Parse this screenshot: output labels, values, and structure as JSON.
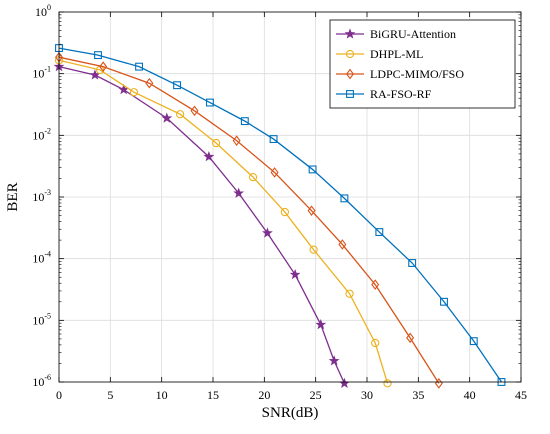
{
  "chart_data": {
    "type": "line",
    "xlabel": "SNR(dB)",
    "ylabel": "BER",
    "xlim": [
      0,
      45
    ],
    "ylim": [
      1e-06,
      1
    ],
    "yscale": "log",
    "grid": true,
    "legend_position": "top-right",
    "x_ticks": [
      "0",
      "5",
      "10",
      "15",
      "20",
      "25",
      "30",
      "35",
      "40",
      "45"
    ],
    "y_ticks": [
      {
        "value": 1e-06,
        "exp": "-6"
      },
      {
        "value": 1e-05,
        "exp": "-5"
      },
      {
        "value": 0.0001,
        "exp": "-4"
      },
      {
        "value": 0.001,
        "exp": "-3"
      },
      {
        "value": 0.01,
        "exp": "-2"
      },
      {
        "value": 0.1,
        "exp": "-1"
      },
      {
        "value": 1,
        "exp": "0"
      }
    ],
    "series": [
      {
        "name": "BiGRU-Attention",
        "color": "#7e2f8e",
        "marker": "star",
        "points": [
          [
            0,
            0.13
          ],
          [
            3.5,
            0.095
          ],
          [
            6.3,
            0.055
          ],
          [
            10.5,
            0.019
          ],
          [
            14.6,
            0.0045
          ],
          [
            17.5,
            0.00115
          ],
          [
            20.3,
            0.00026
          ],
          [
            23,
            5.5e-05
          ],
          [
            25.5,
            8.5e-06
          ],
          [
            26.8,
            2.2e-06
          ],
          [
            27.8,
            9.5e-07
          ]
        ]
      },
      {
        "name": "DHPL-ML",
        "color": "#edb120",
        "marker": "circle",
        "points": [
          [
            0,
            0.165
          ],
          [
            4,
            0.115
          ],
          [
            7.3,
            0.05
          ],
          [
            11.8,
            0.022
          ],
          [
            15.3,
            0.0075
          ],
          [
            18.9,
            0.0021
          ],
          [
            22,
            0.00057
          ],
          [
            24.8,
            0.00014
          ],
          [
            28.3,
            2.7e-05
          ],
          [
            30.8,
            4.3e-06
          ],
          [
            32,
            9.5e-07
          ]
        ]
      },
      {
        "name": "LDPC-MIMO/FSO",
        "color": "#d95319",
        "marker": "diamond",
        "points": [
          [
            0,
            0.185
          ],
          [
            4.3,
            0.13
          ],
          [
            8.8,
            0.07
          ],
          [
            13.2,
            0.025
          ],
          [
            17.3,
            0.0082
          ],
          [
            21,
            0.0025
          ],
          [
            24.6,
            0.0006
          ],
          [
            27.6,
            0.00017
          ],
          [
            30.8,
            3.8e-05
          ],
          [
            34.2,
            5.2e-06
          ],
          [
            37,
            9.5e-07
          ]
        ]
      },
      {
        "name": "RA-FSO-RF",
        "color": "#0072bd",
        "marker": "square",
        "points": [
          [
            0,
            0.26
          ],
          [
            3.8,
            0.2
          ],
          [
            7.8,
            0.13
          ],
          [
            11.5,
            0.065
          ],
          [
            14.7,
            0.034
          ],
          [
            18.1,
            0.017
          ],
          [
            20.9,
            0.0087
          ],
          [
            24.7,
            0.0028
          ],
          [
            27.8,
            0.00095
          ],
          [
            31.2,
            0.00027
          ],
          [
            34.4,
            8.5e-05
          ],
          [
            37.5,
            2e-05
          ],
          [
            40.4,
            4.6e-06
          ],
          [
            43.1,
            1e-06
          ]
        ]
      }
    ]
  }
}
